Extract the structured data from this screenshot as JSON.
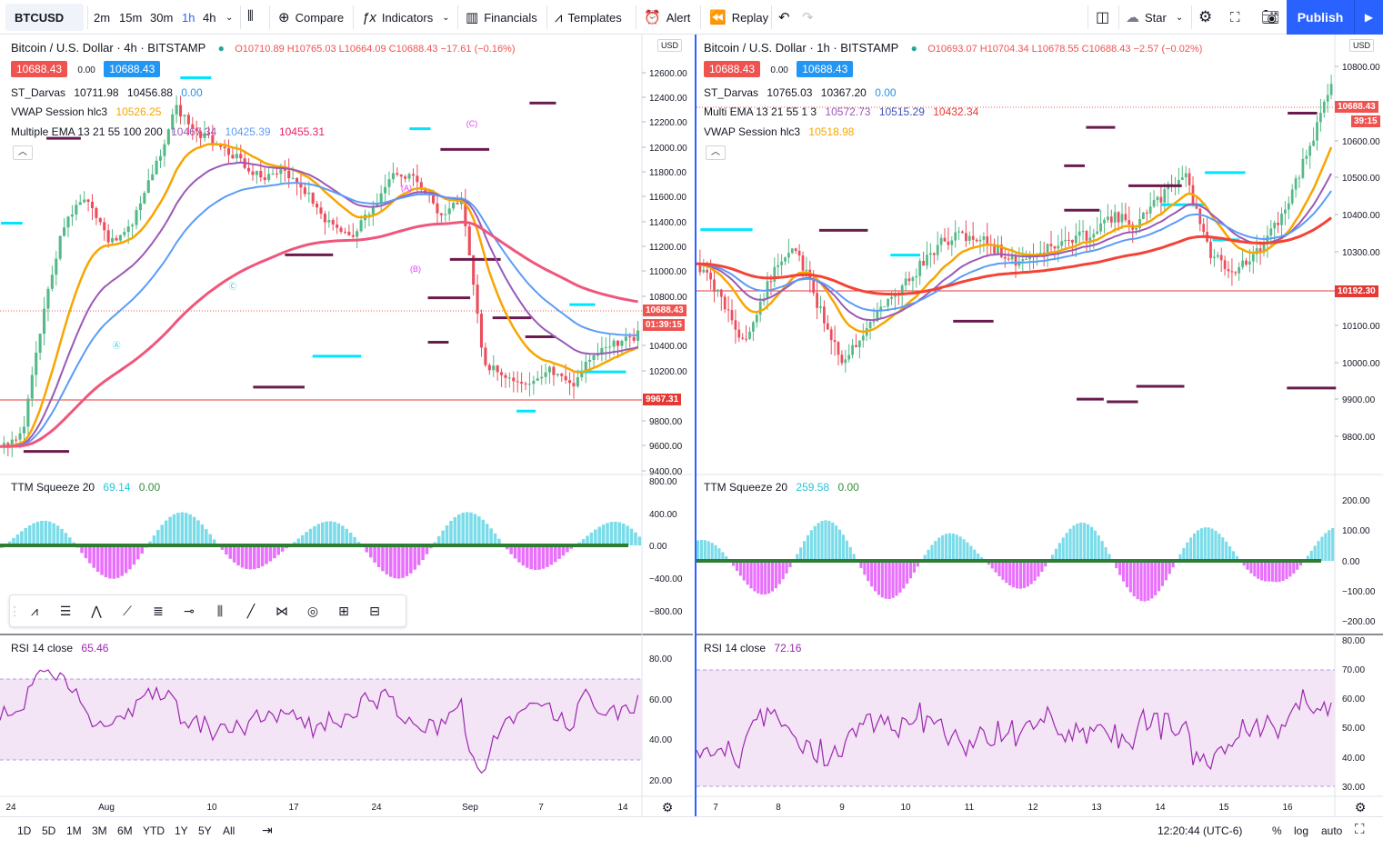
{
  "topbar": {
    "symbol": "BTCUSD",
    "intervals": [
      "2m",
      "15m",
      "30m",
      "1h",
      "4h"
    ],
    "compare": "Compare",
    "indicators": "Indicators",
    "financials": "Financials",
    "templates": "Templates",
    "alert": "Alert",
    "replay": "Replay",
    "star": "Star",
    "publish": "Publish"
  },
  "left": {
    "title": "Bitcoin / U.S. Dollar · 4h · BITSTAMP",
    "ohlc": "O10710.89 H10765.03 L10664.09 C10688.43 −17.61 (−0.16%)",
    "bid": "10688.43",
    "spread": "0.00",
    "ask": "10688.43",
    "ind1_name": "ST_Darvas",
    "ind1_v1": "10711.98",
    "ind1_v2": "10456.88",
    "ind1_v3": "0.00",
    "ind2_name": "VWAP Session hlc3",
    "ind2_v1": "10526.25",
    "ind3_name": "Multiple EMA 13 21 55 100 200",
    "ind3_v1": "10467.34",
    "ind3_v2": "10425.39",
    "ind3_v3": "10455.31",
    "price_axis": [
      "12600.00",
      "12400.00",
      "12200.00",
      "12000.00",
      "11800.00",
      "11600.00",
      "11400.00",
      "11200.00",
      "11000.00",
      "10800.00",
      "10400.00",
      "10200.00",
      "9800.00",
      "9600.00",
      "9400.00"
    ],
    "last_price": "10688.43",
    "countdown": "01:39:15",
    "line_price": "9967.31",
    "ttm_name": "TTM Squeeze 20",
    "ttm_v1": "69.14",
    "ttm_v2": "0.00",
    "ttm_axis": [
      "800.00",
      "400.00",
      "0.00",
      "−400.00",
      "−800.00"
    ],
    "rsi_name": "RSI 14 close",
    "rsi_v1": "65.46",
    "rsi_axis": [
      "80.00",
      "60.00",
      "40.00",
      "20.00"
    ],
    "time_axis": [
      "24",
      "Aug",
      "10",
      "17",
      "24",
      "Sep",
      "7",
      "14"
    ],
    "wave_labels": [
      "A",
      "C",
      "(A)",
      "(B)",
      "(C)"
    ]
  },
  "right": {
    "title": "Bitcoin / U.S. Dollar · 1h · BITSTAMP",
    "ohlc": "O10693.07 H10704.34 L10678.55 C10688.43 −2.57 (−0.02%)",
    "bid": "10688.43",
    "spread": "0.00",
    "ask": "10688.43",
    "ind1_name": "ST_Darvas",
    "ind1_v1": "10765.03",
    "ind1_v2": "10367.20",
    "ind1_v3": "0.00",
    "ind2_name": "Multi EMA 13 21 55 1 3",
    "ind2_v1": "10572.73",
    "ind2_v2": "10515.29",
    "ind2_v3": "10432.34",
    "ind3_name": "VWAP Session hlc3",
    "ind3_v1": "10518.98",
    "price_axis": [
      "10800.00",
      "10600.00",
      "10500.00",
      "10400.00",
      "10300.00",
      "10100.00",
      "10000.00",
      "9900.00",
      "9800.00"
    ],
    "last_price": "10688.43",
    "countdown": "39:15",
    "line_price": "10192.30",
    "ttm_name": "TTM Squeeze 20",
    "ttm_v1": "259.58",
    "ttm_v2": "0.00",
    "ttm_axis": [
      "200.00",
      "100.00",
      "0.00",
      "−100.00",
      "−200.00"
    ],
    "rsi_name": "RSI 14 close",
    "rsi_v1": "72.16",
    "rsi_axis": [
      "80.00",
      "70.00",
      "60.00",
      "50.00",
      "40.00",
      "30.00"
    ],
    "time_axis": [
      "7",
      "8",
      "9",
      "10",
      "11",
      "12",
      "13",
      "14",
      "15",
      "16"
    ]
  },
  "usd": "USD",
  "bottombar": {
    "ranges": [
      "1D",
      "5D",
      "1M",
      "3M",
      "6M",
      "YTD",
      "1Y",
      "5Y",
      "All"
    ],
    "clock": "12:20:44 (UTC-6)",
    "pct": "%",
    "log": "log",
    "auto": "auto"
  },
  "colors": {
    "up": "#53b987",
    "down": "#eb4d5c",
    "ema1": "#f7a600",
    "ema2": "#9b59b6",
    "ema3": "#5b9cf6",
    "ema4": "#f0567c",
    "darvas": "#00e5ff",
    "rsi": "#9c27b0",
    "blue": "#2962ff"
  }
}
